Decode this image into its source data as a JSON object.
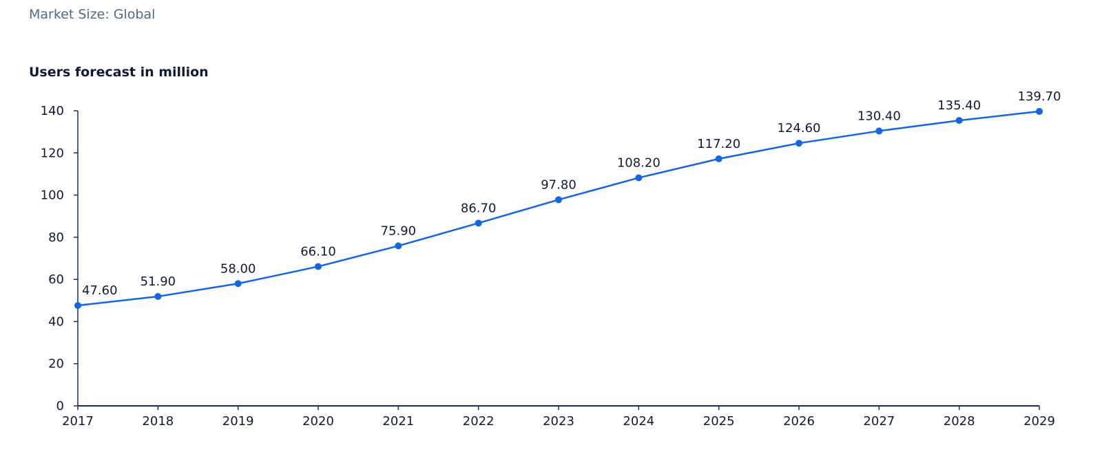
{
  "header": {
    "subtitle": "Market Size: Global"
  },
  "colors": {
    "line": "#1565e0",
    "axis": "#1a2a5a",
    "text": "#0f1b33",
    "subtitle": "#4f6a85"
  },
  "chart_data": {
    "type": "line",
    "title": "Users forecast in million",
    "xlabel": "",
    "ylabel": "",
    "categories": [
      "2017",
      "2018",
      "2019",
      "2020",
      "2021",
      "2022",
      "2023",
      "2024",
      "2025",
      "2026",
      "2027",
      "2028",
      "2029"
    ],
    "series": [
      {
        "values": [
          47.6,
          51.9,
          58.0,
          66.1,
          75.9,
          86.7,
          97.8,
          108.2,
          117.2,
          124.6,
          130.4,
          135.4,
          139.7
        ]
      }
    ],
    "data_labels": [
      "47.60",
      "51.90",
      "58.00",
      "66.10",
      "75.90",
      "86.70",
      "97.80",
      "108.20",
      "117.20",
      "124.60",
      "130.40",
      "135.40",
      "139.70"
    ],
    "y_ticks": [
      "0",
      "20",
      "40",
      "60",
      "80",
      "100",
      "120",
      "140"
    ],
    "ylim": [
      0,
      140
    ],
    "grid": false,
    "legend": "none"
  }
}
